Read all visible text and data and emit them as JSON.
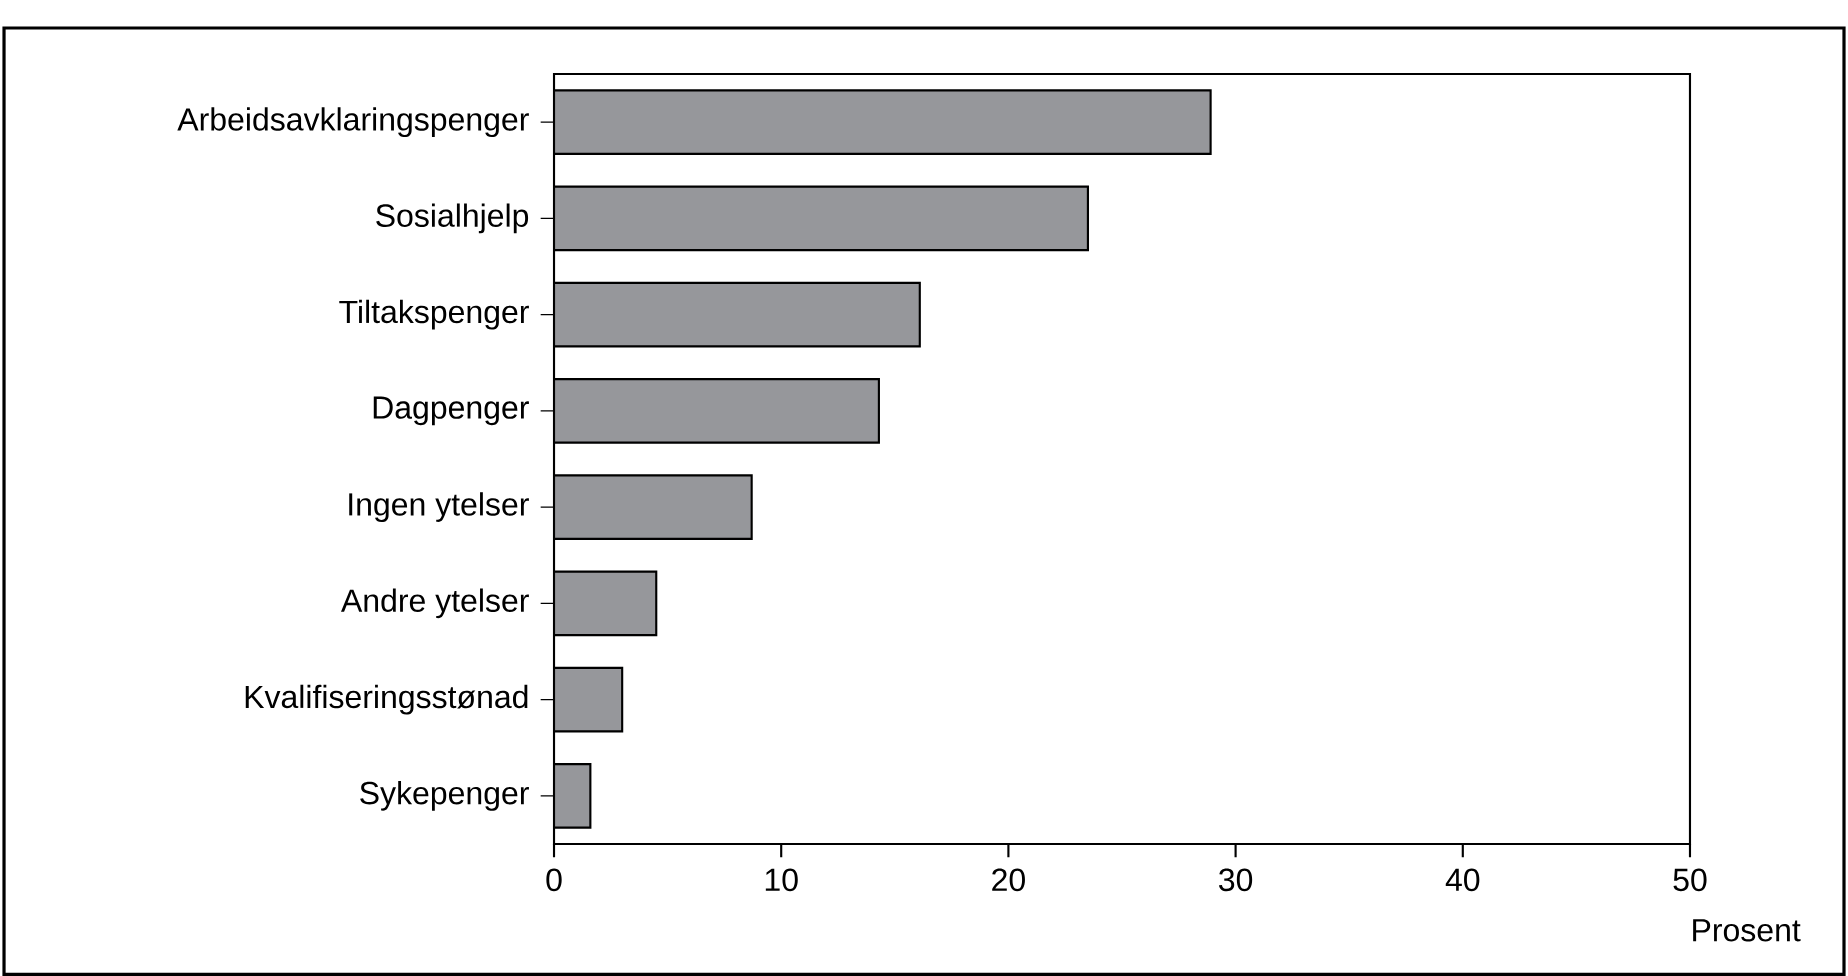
{
  "chart_data": {
    "type": "bar",
    "orientation": "horizontal",
    "xlabel": "Prosent",
    "categories": [
      "Arbeidsavklaringspenger",
      "Sosialhjelp",
      "Tiltakspenger",
      "Dagpenger",
      "Ingen ytelser",
      "Andre ytelser",
      "Kvalifiseringsstønad",
      "Sykepenger"
    ],
    "values": [
      28.9,
      23.5,
      16.1,
      14.3,
      8.7,
      4.5,
      3.0,
      1.6
    ],
    "color": "#96979b",
    "xlim": [
      0,
      50
    ],
    "xticks": [
      0,
      10,
      20,
      30,
      40,
      50
    ],
    "grid": false
  }
}
